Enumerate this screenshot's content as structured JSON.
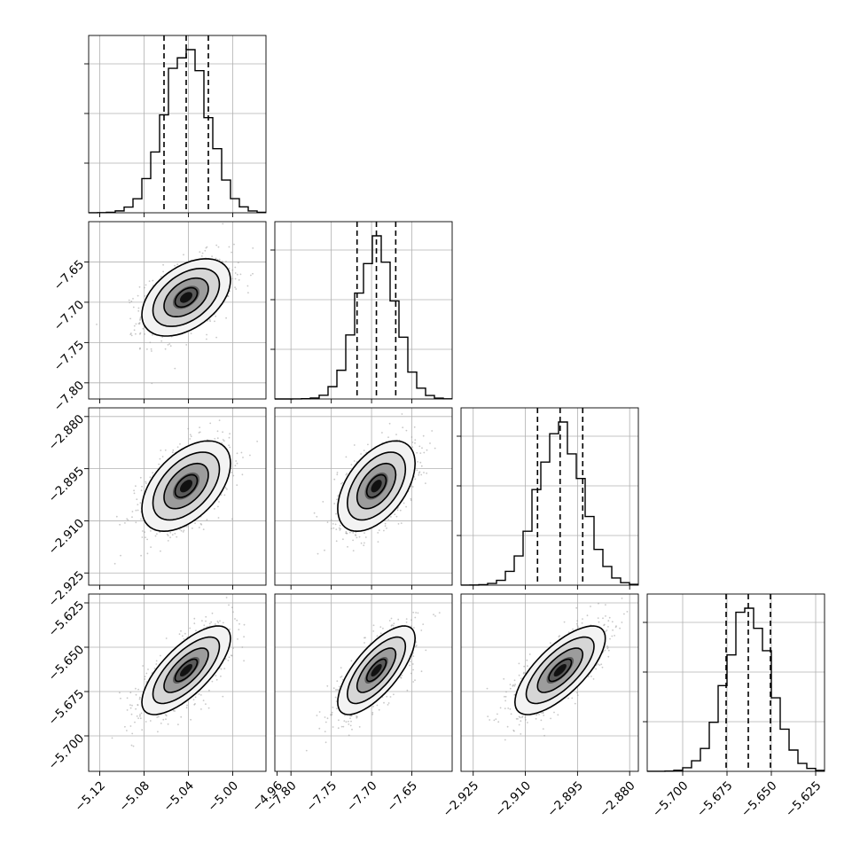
{
  "chart_data": {
    "type": "corner",
    "parameters": [
      {
        "index": 0,
        "mean": -5.042,
        "std": 0.02,
        "quantiles": [
          -5.062,
          -5.042,
          -5.022
        ],
        "range": [
          -5.13,
          -4.97
        ],
        "ticks": [
          -5.12,
          -5.08,
          -5.04,
          -5.0,
          -4.96
        ],
        "tick_labels": [
          "−5.12",
          "−5.08",
          "−5.04",
          "−5.00",
          "−4.96"
        ]
      },
      {
        "index": 1,
        "mean": -7.694,
        "std": 0.024,
        "quantiles": [
          -7.718,
          -7.694,
          -7.67
        ],
        "range": [
          -7.82,
          -7.6
        ],
        "ticks": [
          -7.8,
          -7.75,
          -7.7,
          -7.65
        ],
        "tick_labels": [
          "−7.80",
          "−7.75",
          "−7.70",
          "−7.65"
        ]
      },
      {
        "index": 2,
        "mean": -2.9,
        "std": 0.0065,
        "quantiles": [
          -2.9065,
          -2.9,
          -2.8935
        ],
        "range": [
          -2.9285,
          -2.8775
        ],
        "ticks": [
          -2.925,
          -2.91,
          -2.895,
          -2.88
        ],
        "tick_labels": [
          "−2.925",
          "−2.910",
          "−2.895",
          "−2.880"
        ]
      },
      {
        "index": 3,
        "mean": -5.663,
        "std": 0.0125,
        "quantiles": [
          -5.6755,
          -5.663,
          -5.6505
        ],
        "range": [
          -5.72,
          -5.62
        ],
        "ticks": [
          -5.7,
          -5.675,
          -5.65,
          -5.625
        ],
        "tick_labels": [
          "−5.700",
          "−5.675",
          "−5.650",
          "−5.625"
        ]
      }
    ],
    "correlations": {
      "1-0": 0.45,
      "2-0": 0.5,
      "2-1": 0.5,
      "3-0": 0.72,
      "3-1": 0.72,
      "3-2": 0.72
    },
    "histogram_bins": 20,
    "contour_levels": [
      "0.5 sigma",
      "1 sigma",
      "1.5 sigma",
      "2 sigma"
    ],
    "grid": true
  }
}
